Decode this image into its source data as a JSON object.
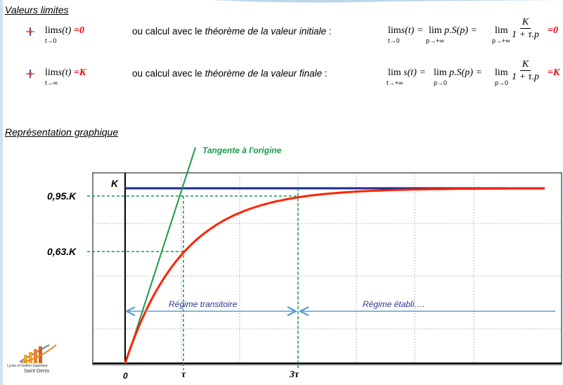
{
  "section1": {
    "title": "Valeurs limites",
    "row1": {
      "lhs_lim": "lim",
      "lhs_sub": "t→0",
      "lhs_expr": "s(t)",
      "lhs_result": " =0",
      "desc_prefix": "ou calcul avec le ",
      "desc_theorem": "théorème de la valeur initiale",
      "desc_suffix": " :",
      "rhs_lim1": "lim",
      "rhs_sub1": "t→0",
      "rhs_expr1": "s(t) = ",
      "rhs_lim2": "lim",
      "rhs_sub2": "p→+∞",
      "rhs_expr2": " p.S(p) = ",
      "rhs_lim3": "lim",
      "rhs_sub3": "p→+∞",
      "rhs_num": "K",
      "rhs_den": "1 + τ.p",
      "rhs_result": "=0"
    },
    "row2": {
      "lhs_lim": "lim",
      "lhs_sub": "t→∞",
      "lhs_expr": "s(t)",
      "lhs_result": " =K",
      "desc_prefix": "ou calcul avec le ",
      "desc_theorem": "théorème de la valeur finale",
      "desc_suffix": " :",
      "rhs_lim1": "lim",
      "rhs_sub1": "t→+∞",
      "rhs_expr1": " s(t) = ",
      "rhs_lim2": "lim",
      "rhs_sub2": "p→0",
      "rhs_expr2": " p.S(p) = ",
      "rhs_lim3": "lim",
      "rhs_sub3": "p→0",
      "rhs_num": "K",
      "rhs_den": "1 + τ.p",
      "rhs_result": "=K"
    }
  },
  "section2": {
    "title": "Représentation graphique"
  },
  "graph": {
    "tangent_label": "Tangente à l'origine",
    "k_label": "K",
    "y_label_95": "0,95.K",
    "y_label_63": "0,63.K",
    "x_label_0": "0",
    "x_label_tau": "τ",
    "x_label_3tau": "3τ",
    "regime_transitoire": "Régime transitoire",
    "regime_etabli": "Régime établi….",
    "colors": {
      "response": "#ff2200",
      "asymptote": "#1b2a8f",
      "tangent": "#1a9a4a",
      "guides": "#1a9a4a",
      "regime_arrows": "#5b9bd5",
      "regime_text": "#2a3a8a"
    }
  },
  "logo": {
    "line1": "Lycée et Institut Supérieur",
    "line2": "Saint-Denis"
  }
}
